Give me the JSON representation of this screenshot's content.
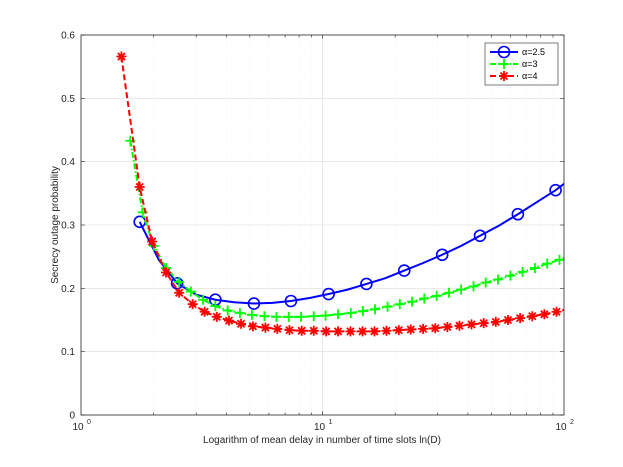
{
  "chart_data": {
    "type": "line",
    "xscale": "log",
    "title": "",
    "xlabel": "Logarithm of mean delay in number of time slots ln(D)",
    "ylabel": "Secrecy outage probability",
    "xlim": [
      1,
      100
    ],
    "ylim": [
      0,
      0.6
    ],
    "xticks": [
      1,
      10,
      100
    ],
    "xtick_labels": [
      {
        "base": "10",
        "exp": "0"
      },
      {
        "base": "10",
        "exp": "1"
      },
      {
        "base": "10",
        "exp": "2"
      }
    ],
    "yticks": [
      0,
      0.1,
      0.2,
      0.3,
      0.4,
      0.5,
      0.6
    ],
    "ytick_labels": [
      "0",
      "0.1",
      "0.2",
      "0.3",
      "0.4",
      "0.5",
      "0.6"
    ],
    "grid": true,
    "legend_position": "top-right",
    "series": [
      {
        "name": "α=2.5",
        "color": "#0000ff",
        "dash": "solid",
        "marker": "circle",
        "x": [
          1.75,
          2.1,
          2.5,
          3.0,
          3.6,
          4.3,
          5.2,
          6.2,
          7.4,
          8.9,
          10.6,
          12.7,
          15.2,
          18.2,
          21.8,
          26.1,
          31.3,
          37.5,
          44.9,
          53.8,
          64.4,
          77.1,
          92.3,
          100
        ],
        "y": [
          0.305,
          0.245,
          0.208,
          0.19,
          0.182,
          0.178,
          0.176,
          0.177,
          0.18,
          0.185,
          0.191,
          0.198,
          0.207,
          0.216,
          0.228,
          0.24,
          0.253,
          0.267,
          0.283,
          0.299,
          0.317,
          0.336,
          0.355,
          0.365
        ],
        "marker_every": 2
      },
      {
        "name": "α=3",
        "color": "#00ff00",
        "dash": "dashdot",
        "marker": "plus",
        "x": [
          1.6,
          1.8,
          2.0,
          2.25,
          2.55,
          2.85,
          3.2,
          3.6,
          4.05,
          4.55,
          5.1,
          5.75,
          6.45,
          7.25,
          8.15,
          9.2,
          10.3,
          11.6,
          13.1,
          14.7,
          16.5,
          18.6,
          20.9,
          23.5,
          26.4,
          29.7,
          33.4,
          37.5,
          42.2,
          47.4,
          53.3,
          60.0,
          67.4,
          75.8,
          85.2,
          95.8,
          100
        ],
        "y": [
          0.433,
          0.32,
          0.267,
          0.232,
          0.21,
          0.195,
          0.182,
          0.172,
          0.165,
          0.161,
          0.158,
          0.156,
          0.155,
          0.155,
          0.155,
          0.156,
          0.157,
          0.159,
          0.161,
          0.164,
          0.167,
          0.171,
          0.175,
          0.179,
          0.184,
          0.188,
          0.193,
          0.198,
          0.203,
          0.209,
          0.214,
          0.22,
          0.226,
          0.232,
          0.239,
          0.245,
          0.248
        ]
      },
      {
        "name": "α=4",
        "color": "#ff0000",
        "dash": "dashed",
        "marker": "asterisk",
        "x": [
          1.47,
          1.75,
          1.97,
          2.25,
          2.55,
          2.9,
          3.25,
          3.65,
          4.1,
          4.6,
          5.15,
          5.8,
          6.5,
          7.3,
          8.2,
          9.2,
          10.35,
          11.6,
          13.05,
          14.65,
          16.4,
          18.4,
          20.7,
          23.2,
          26.1,
          29.3,
          32.9,
          36.9,
          41.4,
          46.5,
          52.2,
          58.6,
          65.8,
          73.9,
          82.9,
          93.1,
          100
        ],
        "y": [
          0.566,
          0.36,
          0.274,
          0.225,
          0.193,
          0.175,
          0.163,
          0.155,
          0.149,
          0.144,
          0.14,
          0.138,
          0.136,
          0.134,
          0.133,
          0.133,
          0.132,
          0.132,
          0.132,
          0.132,
          0.132,
          0.133,
          0.134,
          0.135,
          0.136,
          0.137,
          0.139,
          0.141,
          0.143,
          0.145,
          0.147,
          0.15,
          0.153,
          0.156,
          0.159,
          0.163,
          0.166
        ]
      }
    ]
  }
}
